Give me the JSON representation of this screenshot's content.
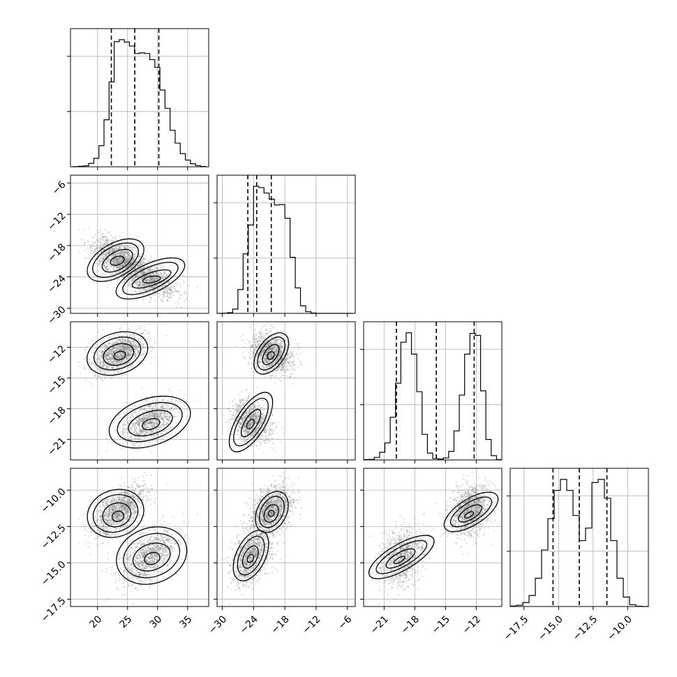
{
  "colors": {
    "line": "#000000",
    "grid": "#b0b0b0",
    "scatter": "#777777",
    "fill_levels": [
      "#ffffff",
      "#d8d8d8",
      "#9a9a9a",
      "#555555"
    ]
  },
  "chart_data": {
    "type": "corner",
    "grid": true,
    "n_params": 4,
    "parameters": [
      {
        "ticks": [
          20,
          25,
          30,
          35
        ],
        "tick_labels": [
          "20",
          "25",
          "30",
          "35"
        ],
        "range": [
          15.5,
          38.5
        ],
        "quantiles": [
          22.3,
          26.2,
          30.2
        ],
        "hist": {
          "edges": [
            16,
            38
          ],
          "counts": [
            1,
            3,
            6,
            20,
            50,
            125,
            278,
            502,
            740,
            752,
            738,
            714,
            670,
            674,
            670,
            634,
            588,
            454,
            346,
            216,
            140,
            78,
            40,
            18,
            7,
            2
          ]
        }
      },
      {
        "ticks": [
          -30,
          -24,
          -18,
          -12,
          -6
        ],
        "tick_labels": [
          "−30",
          "−24",
          "−18",
          "−12",
          "−6"
        ],
        "range": [
          -31,
          -4.5
        ],
        "quantiles": [
          -25.1,
          -23.4,
          -20.6
        ],
        "hist": {
          "edges": [
            -31,
            -5
          ],
          "counts": [
            0,
            1,
            4,
            25,
            140,
            350,
            520,
            748,
            740,
            708,
            672,
            638,
            640,
            560,
            330,
            150,
            44,
            10,
            2,
            0,
            0,
            0,
            0,
            0,
            0,
            0
          ]
        }
      },
      {
        "ticks": [
          -21,
          -18,
          -15,
          -12
        ],
        "tick_labels": [
          "−21",
          "−18",
          "−15",
          "−12"
        ],
        "range": [
          -23,
          -9.5
        ],
        "quantiles": [
          -19.8,
          -15.9,
          -12.2
        ],
        "hist": {
          "edges": [
            -23,
            -9.5
          ],
          "counts": [
            2,
            3,
            15,
            45,
            100,
            250,
            450,
            690,
            745,
            620,
            400,
            150,
            40,
            8,
            5,
            12,
            50,
            170,
            380,
            620,
            742,
            730,
            405,
            120,
            25,
            2
          ]
        }
      },
      {
        "ticks": [
          -17.5,
          -15.0,
          -12.5,
          -10.0
        ],
        "tick_labels": [
          "−17.5",
          "−15.0",
          "−12.5",
          "−10.0"
        ],
        "y_tick_labels": [
          "−17.5",
          "−15.0",
          "−12.5",
          "−10.0"
        ],
        "range": [
          -18.5,
          -8.5
        ],
        "quantiles": [
          -15.4,
          -13.5,
          -11.5
        ],
        "hist": {
          "edges": [
            -18.5,
            -8.5
          ],
          "counts": [
            3,
            8,
            25,
            70,
            180,
            360,
            560,
            740,
            810,
            740,
            580,
            420,
            500,
            790,
            810,
            690,
            420,
            180,
            60,
            12,
            2,
            0
          ]
        }
      }
    ],
    "y_tick_overrides": {
      "1": {
        "ticks": [
          -30,
          -24,
          -18,
          -12,
          -6
        ],
        "tick_labels": [
          "−30",
          "−24",
          "−18",
          "−12",
          "−6"
        ]
      },
      "2": {
        "ticks": [
          -21,
          -18,
          -15,
          -12
        ],
        "tick_labels": [
          "−21",
          "−18",
          "−15",
          "−12"
        ]
      },
      "3": {
        "ticks": [
          -17.5,
          -15.0,
          -12.5,
          -10.0
        ],
        "tick_labels": [
          "−17.5",
          "−15.0",
          "−12.5",
          "−10.0"
        ]
      }
    },
    "x_axis_overrides": {
      "3": {
        "ticks": [
          -17.5,
          -15.0,
          -12.5,
          -10.0
        ],
        "tick_labels": [
          "−17.5",
          "−15.0",
          "−12.5",
          "−10.0"
        ]
      }
    },
    "y_display_ranges": {
      "1": [
        -31,
        -4.5
      ],
      "2": [
        -23,
        -9.5
      ],
      "3": [
        -18,
        -8.5
      ]
    },
    "modes": [
      {
        "weight": 0.55,
        "mean": [
          23.5,
          -20.5,
          -12.6,
          -11.4
        ],
        "sd": [
          2.1,
          1.9,
          0.9,
          0.8
        ]
      },
      {
        "weight": 0.45,
        "mean": [
          28.5,
          -24.5,
          -19.3,
          -14.6
        ],
        "sd": [
          2.2,
          1.7,
          1.0,
          0.9
        ]
      }
    ],
    "contours": [
      {
        "panel": [
          1,
          0
        ],
        "levels": [
          {
            "centers": [
              [
                23.0,
                -20.8
              ],
              [
                28.8,
                -24.3
              ]
            ],
            "rx": [
              5.2,
              6.2
            ],
            "ry": [
              3.2,
              2.8
            ],
            "rot": [
              -30,
              -25
            ]
          },
          {
            "centers": [
              [
                23.0,
                -20.8
              ],
              [
                28.8,
                -24.3
              ]
            ],
            "rx": [
              4.2,
              5.0
            ],
            "ry": [
              2.6,
              2.1
            ],
            "rot": [
              -30,
              -25
            ]
          },
          {
            "centers": [
              [
                23.3,
                -20.9
              ],
              [
                29.0,
                -24.4
              ]
            ],
            "rx": [
              2.8,
              3.4
            ],
            "ry": [
              1.7,
              1.2
            ],
            "rot": [
              -30,
              -20
            ]
          },
          {
            "centers": [
              [
                23.3,
                -20.9
              ],
              [
                29.0,
                -24.5
              ]
            ],
            "rx": [
              1.2,
              1.5
            ],
            "ry": [
              0.8,
              0.6
            ],
            "rot": [
              -20,
              -10
            ]
          }
        ]
      },
      {
        "panel": [
          2,
          0
        ],
        "levels": [
          {
            "centers": [
              [
                23.3,
                -12.6
              ],
              [
                28.7,
                -19.3
              ]
            ],
            "rx": [
              5.2,
              7.0
            ],
            "ry": [
              2.0,
              2.3
            ],
            "rot": [
              -18,
              -18
            ]
          },
          {
            "centers": [
              [
                23.3,
                -12.6
              ],
              [
                28.7,
                -19.3
              ]
            ],
            "rx": [
              4.0,
              5.6
            ],
            "ry": [
              1.5,
              1.7
            ],
            "rot": [
              -18,
              -18
            ]
          },
          {
            "centers": [
              [
                23.5,
                -12.7
              ],
              [
                28.8,
                -19.4
              ]
            ],
            "rx": [
              2.6,
              3.8
            ],
            "ry": [
              1.0,
              1.1
            ],
            "rot": [
              -18,
              -18
            ]
          },
          {
            "centers": [
              [
                23.7,
                -12.8
              ],
              [
                28.9,
                -19.5
              ]
            ],
            "rx": [
              1.0,
              1.5
            ],
            "ry": [
              0.4,
              0.5
            ],
            "rot": [
              -18,
              -18
            ]
          }
        ]
      },
      {
        "panel": [
          2,
          1
        ],
        "levels": [
          {
            "centers": [
              [
                -20.6,
                -12.6
              ],
              [
                -24.5,
                -19.3
              ]
            ],
            "rx": [
              4.5,
              6.5
            ],
            "ry": [
              1.3,
              1.4
            ],
            "rot": [
              -55,
              -58
            ]
          },
          {
            "centers": [
              [
                -20.6,
                -12.6
              ],
              [
                -24.5,
                -19.3
              ]
            ],
            "rx": [
              3.6,
              5.2
            ],
            "ry": [
              1.0,
              1.1
            ],
            "rot": [
              -55,
              -58
            ]
          },
          {
            "centers": [
              [
                -20.7,
                -12.7
              ],
              [
                -24.5,
                -19.4
              ]
            ],
            "rx": [
              2.2,
              3.0
            ],
            "ry": [
              0.6,
              0.6
            ],
            "rot": [
              -55,
              -58
            ]
          },
          {
            "centers": [
              [
                -20.7,
                -12.8
              ],
              [
                -24.6,
                -19.5
              ]
            ],
            "rx": [
              0.8,
              1.0
            ],
            "ry": [
              0.3,
              0.3
            ],
            "rot": [
              -55,
              -58
            ]
          }
        ]
      },
      {
        "panel": [
          3,
          0
        ],
        "levels": [
          {
            "centers": [
              [
                23.0,
                -11.6
              ],
              [
                29.0,
                -14.5
              ]
            ],
            "rx": [
              4.8,
              6.0
            ],
            "ry": [
              1.6,
              1.9
            ],
            "rot": [
              -20,
              -20
            ]
          },
          {
            "centers": [
              [
                23.0,
                -11.6
              ],
              [
                29.0,
                -14.5
              ]
            ],
            "rx": [
              3.8,
              4.8
            ],
            "ry": [
              1.25,
              1.45
            ],
            "rot": [
              -20,
              -20
            ]
          },
          {
            "centers": [
              [
                23.2,
                -11.7
              ],
              [
                29.0,
                -14.6
              ]
            ],
            "rx": [
              2.4,
              3.2
            ],
            "ry": [
              0.8,
              0.9
            ],
            "rot": [
              -20,
              -20
            ]
          },
          {
            "centers": [
              [
                23.4,
                -11.8
              ],
              [
                29.1,
                -14.7
              ]
            ],
            "rx": [
              1.0,
              1.3
            ],
            "ry": [
              0.35,
              0.4
            ],
            "rot": [
              -20,
              -20
            ]
          }
        ]
      },
      {
        "panel": [
          3,
          1
        ],
        "levels": [
          {
            "centers": [
              [
                -20.5,
                -11.5
              ],
              [
                -24.5,
                -14.5
              ]
            ],
            "rx": [
              4.2,
              5.2
            ],
            "ry": [
              1.0,
              1.0
            ],
            "rot": [
              -62,
              -64
            ]
          },
          {
            "centers": [
              [
                -20.5,
                -11.5
              ],
              [
                -24.5,
                -14.5
              ]
            ],
            "rx": [
              3.2,
              4.0
            ],
            "ry": [
              0.75,
              0.75
            ],
            "rot": [
              -62,
              -64
            ]
          },
          {
            "centers": [
              [
                -20.6,
                -11.6
              ],
              [
                -24.6,
                -14.6
              ]
            ],
            "rx": [
              1.8,
              2.3
            ],
            "ry": [
              0.45,
              0.45
            ],
            "rot": [
              -62,
              -64
            ]
          },
          {
            "centers": [
              [
                -20.6,
                -11.6
              ],
              [
                -24.6,
                -14.7
              ]
            ],
            "rx": [
              0.6,
              0.8
            ],
            "ry": [
              0.2,
              0.2
            ],
            "rot": [
              -62,
              -64
            ]
          }
        ]
      },
      {
        "panel": [
          3,
          2
        ],
        "levels": [
          {
            "centers": [
              [
                -12.5,
                -11.5
              ],
              [
                -19.3,
                -14.6
              ]
            ],
            "rx": [
              3.0,
              3.6
            ],
            "ry": [
              0.9,
              0.9
            ],
            "rot": [
              -32,
              -30
            ]
          },
          {
            "centers": [
              [
                -12.5,
                -11.5
              ],
              [
                -19.3,
                -14.6
              ]
            ],
            "rx": [
              2.3,
              2.8
            ],
            "ry": [
              0.65,
              0.65
            ],
            "rot": [
              -32,
              -30
            ]
          },
          {
            "centers": [
              [
                -12.6,
                -11.6
              ],
              [
                -19.4,
                -14.7
              ]
            ],
            "rx": [
              1.3,
              1.6
            ],
            "ry": [
              0.4,
              0.4
            ],
            "rot": [
              -32,
              -30
            ]
          },
          {
            "centers": [
              [
                -12.7,
                -11.7
              ],
              [
                -19.5,
                -14.8
              ]
            ],
            "rx": [
              0.5,
              0.6
            ],
            "ry": [
              0.15,
              0.15
            ],
            "rot": [
              -32,
              -30
            ]
          }
        ]
      }
    ]
  }
}
